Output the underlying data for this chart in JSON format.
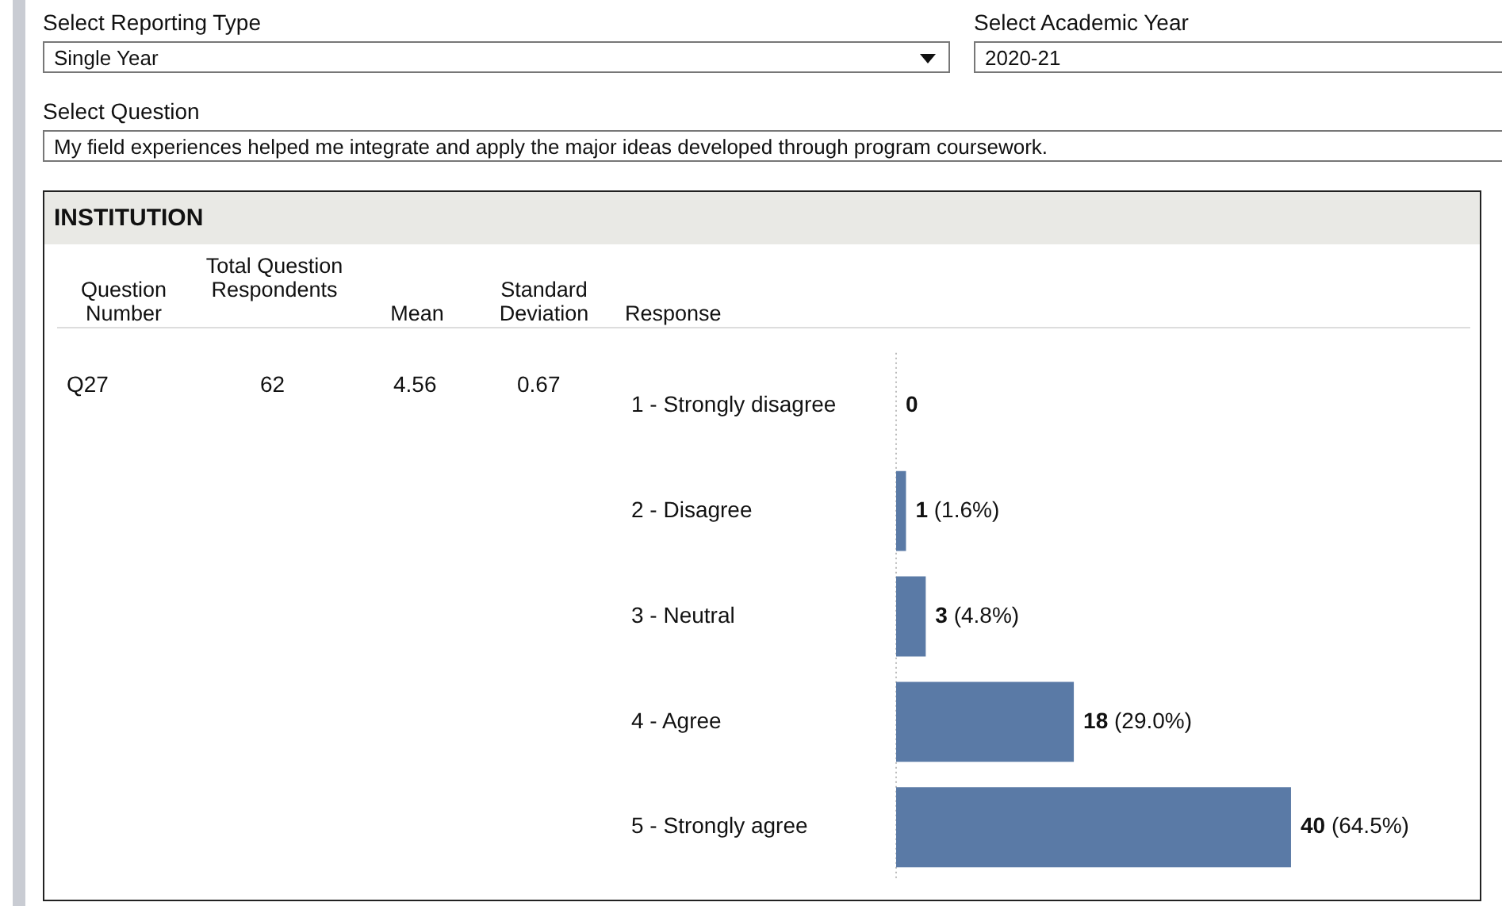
{
  "chart_data": {
    "type": "bar",
    "orientation": "horizontal",
    "title": "INSTITUTION",
    "categories": [
      "1 - Strongly disagree",
      "2 - Disagree",
      "3 - Neutral",
      "4 - Agree",
      "5 - Strongly agree"
    ],
    "values": [
      0,
      1,
      3,
      18,
      40
    ],
    "color": "#5a7aa6",
    "value_labels": [
      "0",
      "1 (1.6%)",
      "3 (4.8%)",
      "18 (29.0%)",
      "40 (64.5%)"
    ],
    "annotations": [
      "Select Reporting Type",
      "Single Year",
      "Select Academic Year",
      "2020-21",
      "Select Question",
      "My field experiences helped me integrate and apply the major ideas developed through program coursework.",
      "Question Number",
      "Total Question Respondents",
      "Mean",
      "Standard Deviation",
      "Response",
      "Q27",
      "62",
      "4.56",
      "0.67"
    ],
    "legend": false
  }
}
